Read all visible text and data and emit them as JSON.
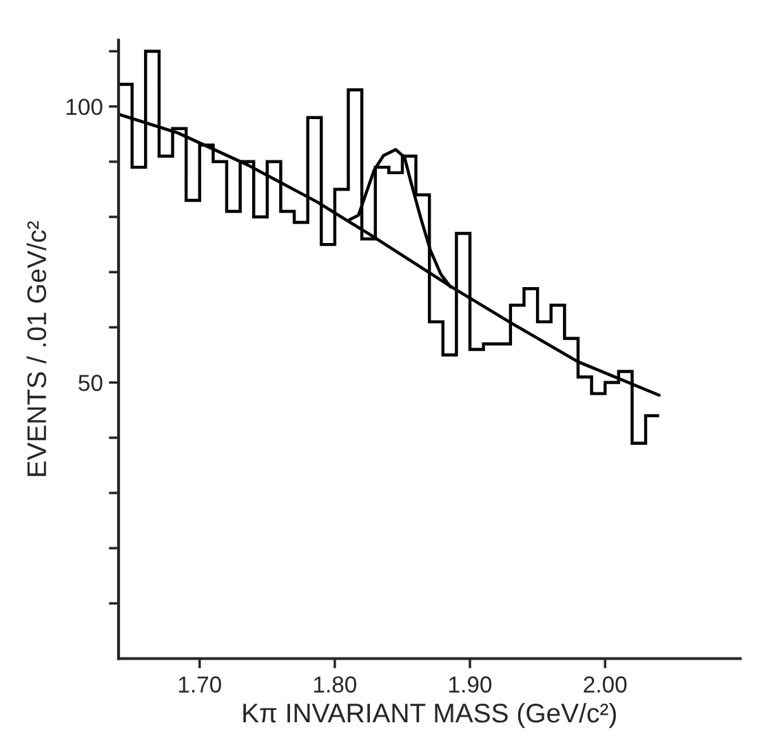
{
  "chart_data": {
    "type": "histogram",
    "xlabel": "Kπ INVARIANT MASS (GeV/c²)",
    "ylabel": "EVENTS / .01 GeV/c²",
    "bins": [
      1.64,
      1.65,
      1.66,
      1.67,
      1.68,
      1.69,
      1.7,
      1.71,
      1.72,
      1.73,
      1.74,
      1.75,
      1.76,
      1.77,
      1.78,
      1.79,
      1.8,
      1.81,
      1.82,
      1.83,
      1.84,
      1.85,
      1.86,
      1.87,
      1.88,
      1.89,
      1.9,
      1.91,
      1.92,
      1.93,
      1.94,
      1.95,
      1.96,
      1.97,
      1.98,
      1.99,
      2.0,
      2.01,
      2.02,
      2.03,
      2.04
    ],
    "values": [
      104,
      89,
      110,
      91,
      96,
      83,
      93,
      90,
      81,
      90,
      80,
      90,
      81,
      79,
      98,
      75,
      85,
      103,
      76,
      89,
      88,
      91,
      84,
      61,
      55,
      77,
      56,
      57,
      57,
      64,
      67,
      61,
      64,
      58,
      51,
      48,
      50,
      52,
      39,
      44
    ],
    "color": "#000000",
    "series": [
      {
        "type": "line",
        "color": "#000000",
        "x": [
          1.64,
          1.684,
          1.7356,
          1.787,
          1.826,
          1.8877,
          1.9318,
          1.9797,
          2.04
        ],
        "values": [
          98.6,
          95.2,
          89.4,
          82.7,
          76.8,
          67.1,
          60.6,
          53.8,
          47.7
        ]
      },
      {
        "type": "line",
        "color": "#000000",
        "x": [
          1.811,
          1.8175,
          1.829,
          1.836,
          1.845,
          1.8516,
          1.856,
          1.8636,
          1.8708,
          1.8785,
          1.8857
        ],
        "values": [
          79.5,
          80.3,
          88.4,
          91.1,
          92.2,
          90.8,
          86.6,
          79.8,
          73.9,
          69.6,
          67.3
        ]
      }
    ],
    "xlim": [
      1.64,
      2.1
    ],
    "ylim": [
      0,
      112
    ],
    "xticks": [
      {
        "value": 1.7,
        "label": "1.70"
      },
      {
        "value": 1.8,
        "label": "1.80"
      },
      {
        "value": 1.9,
        "label": "1.90"
      },
      {
        "value": 2.0,
        "label": "2.00"
      }
    ],
    "yticks": [
      {
        "value": 10,
        "label": null
      },
      {
        "value": 20,
        "label": null
      },
      {
        "value": 30,
        "label": null
      },
      {
        "value": 40,
        "label": null
      },
      50,
      {
        "value": 60,
        "label": null
      },
      {
        "value": 70,
        "label": null
      },
      {
        "value": 80,
        "label": null
      },
      {
        "value": 90,
        "label": null
      },
      100,
      {
        "value": 110,
        "label": null
      }
    ],
    "grid": false,
    "legend": false
  }
}
